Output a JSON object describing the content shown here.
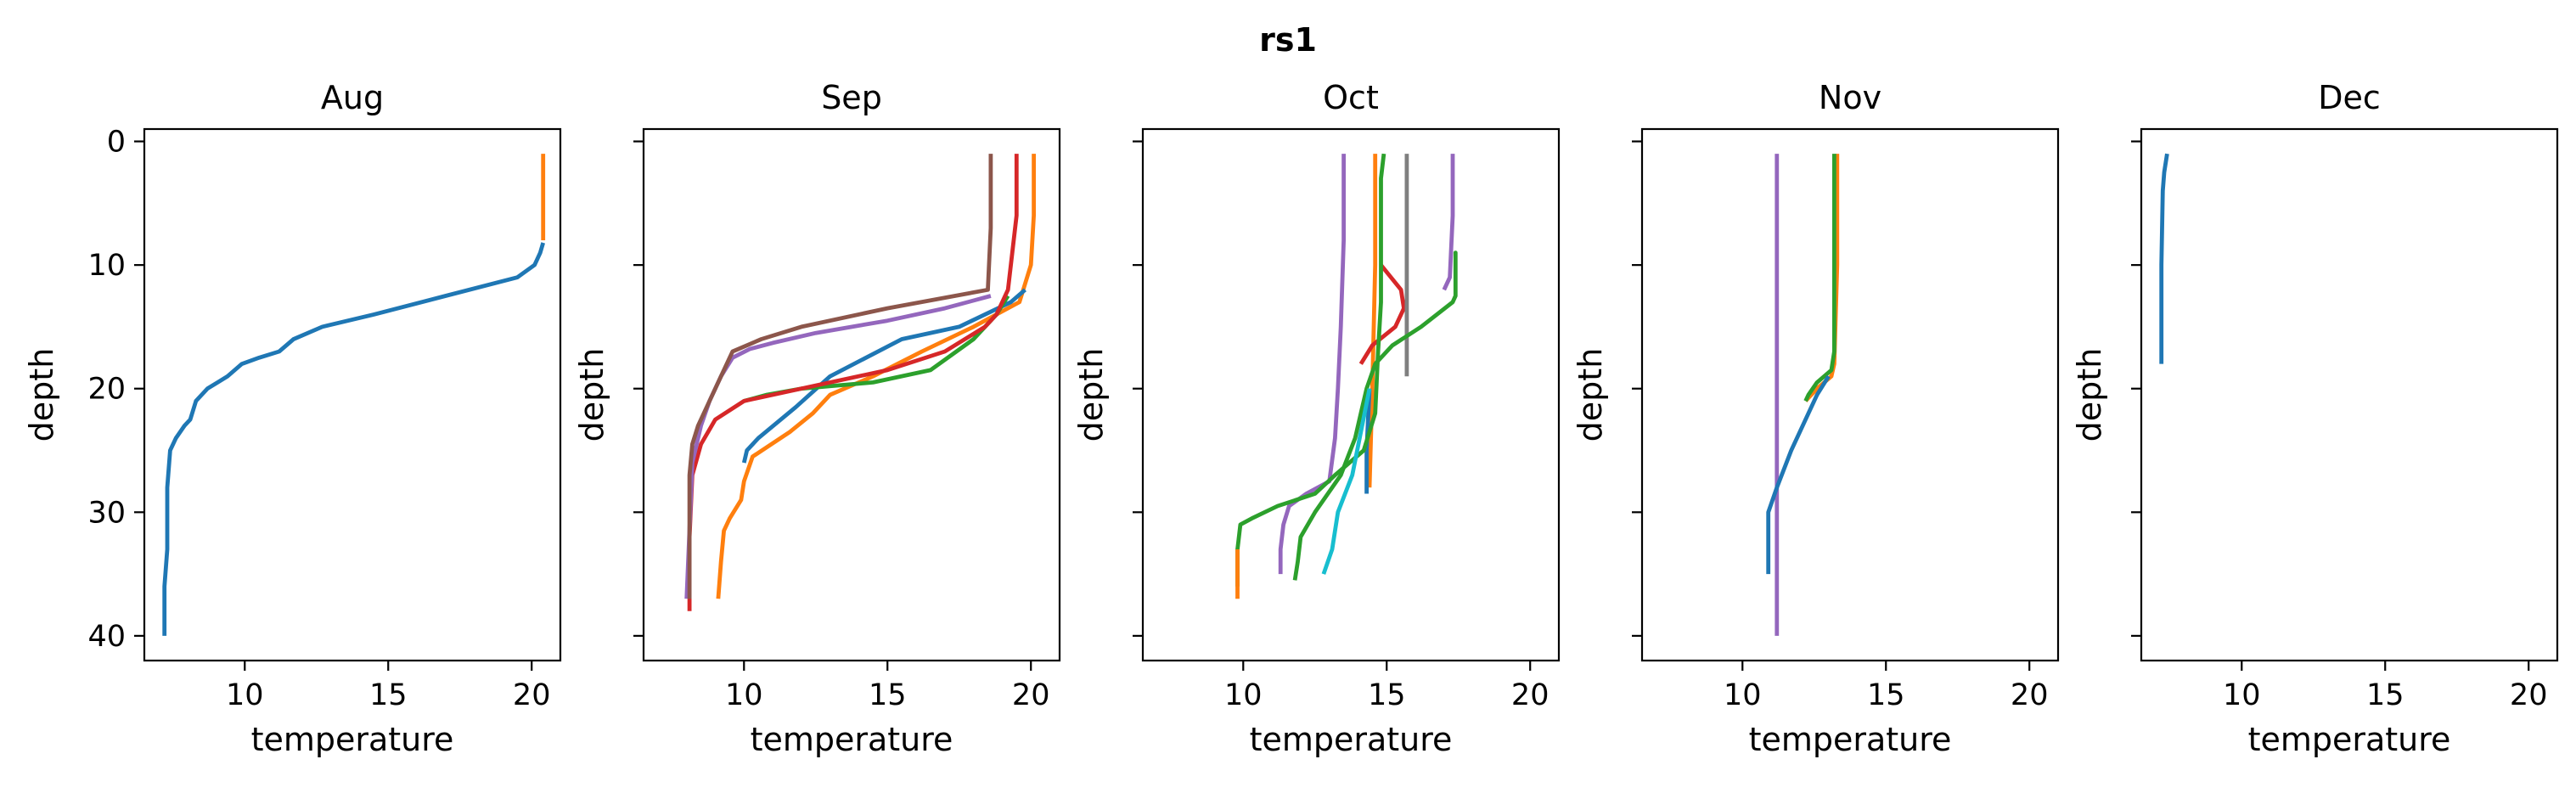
{
  "chart_data": {
    "type": "line",
    "title": "rs1",
    "xlabel": "temperature",
    "ylabel": "depth",
    "xlim": [
      6.5,
      21.0
    ],
    "ylim": [
      42,
      -1
    ],
    "y_inverted": true,
    "sharey": true,
    "xticks": [
      10,
      15,
      20
    ],
    "yticks": [
      0,
      10,
      20,
      30,
      40
    ],
    "grid": false,
    "palette": {
      "blue": "#1f77b4",
      "orange": "#ff7f0e",
      "green": "#2ca02c",
      "red": "#d62728",
      "purple": "#9467bd",
      "brown": "#8c564b",
      "gray": "#7f7f7f",
      "cyan": "#17becf"
    },
    "panels": [
      {
        "title": "Aug",
        "series": [
          {
            "color": "#ff7f0e",
            "temperature": [
              20.4,
              20.4,
              20.4
            ],
            "depth": [
              1,
              5,
              8
            ]
          },
          {
            "color": "#1f77b4",
            "temperature": [
              20.4,
              20.3,
              20.1,
              19.5,
              17,
              14.5,
              12.7,
              11.7,
              11.2,
              10.5,
              9.9,
              9.4,
              8.7,
              8.3,
              8.1,
              7.9,
              7.6,
              7.4,
              7.3,
              7.3,
              7.3,
              7.2,
              7.2
            ],
            "depth": [
              8.2,
              9,
              10,
              11,
              12.5,
              14,
              15,
              16,
              17,
              17.5,
              18,
              19,
              20,
              21,
              22.5,
              23,
              24,
              25,
              28,
              31,
              33,
              36,
              40
            ]
          }
        ]
      },
      {
        "title": "Sep",
        "series": [
          {
            "color": "#ff7f0e",
            "temperature": [
              20.1,
              20.1,
              20.0,
              19.6,
              18.0,
              16.2,
              14.5,
              13.0,
              12.4,
              11.6,
              10.3,
              10.0,
              9.9,
              9.5,
              9.3,
              9.2,
              9.1
            ],
            "depth": [
              1,
              6,
              10,
              13,
              15,
              17,
              19,
              20.5,
              22,
              23.5,
              25.5,
              27.5,
              29,
              30.5,
              31.5,
              34,
              37
            ]
          },
          {
            "color": "#1f77b4",
            "temperature": [
              19.8,
              19.3,
              17.5,
              15.5,
              13.0,
              11.8,
              10.5,
              10.1,
              10.0
            ],
            "depth": [
              12,
              13,
              15,
              16,
              19,
              21.5,
              24,
              25,
              26
            ]
          },
          {
            "color": "#2ca02c",
            "temperature": [
              19.2,
              18.8,
              18.0,
              16.5,
              14.5,
              12.0,
              10.8,
              10.0
            ],
            "depth": [
              12.5,
              14,
              16,
              18.5,
              19.5,
              20,
              20.5,
              21
            ]
          },
          {
            "color": "#d62728",
            "temperature": [
              19.5,
              19.5,
              19.2,
              18.8,
              18.4,
              17.0,
              15.0,
              12.0,
              10.0,
              9.0,
              8.5,
              8.2,
              8.1,
              8.1
            ],
            "depth": [
              1,
              6,
              12,
              14,
              15,
              17,
              18.5,
              20,
              21,
              22.5,
              24.5,
              27,
              32,
              38
            ]
          },
          {
            "color": "#9467bd",
            "temperature": [
              18.6,
              17.0,
              15.0,
              12.5,
              11.0,
              10.2,
              9.6,
              9.2,
              8.8,
              8.5,
              8.2,
              8.0
            ],
            "depth": [
              12.5,
              13.5,
              14.5,
              15.5,
              16.3,
              16.8,
              17.5,
              19,
              21,
              23,
              26,
              37
            ]
          },
          {
            "color": "#8c564b",
            "temperature": [
              18.6,
              18.6,
              18.5,
              15.0,
              12.0,
              10.6,
              9.6,
              9.2,
              8.8,
              8.4,
              8.2,
              8.1,
              8.1
            ],
            "depth": [
              1,
              7,
              12,
              13.5,
              15,
              16,
              17,
              19,
              21,
              23,
              24.5,
              27,
              37
            ]
          }
        ]
      },
      {
        "title": "Oct",
        "series": [
          {
            "color": "#9467bd",
            "temperature": [
              13.5,
              13.5,
              13.4,
              13.3,
              13.2,
              13.0,
              12.2,
              11.6,
              11.4,
              11.3,
              11.3
            ],
            "depth": [
              1,
              8,
              15,
              20,
              24,
              27.5,
              28.5,
              29.5,
              31,
              33,
              35
            ]
          },
          {
            "color": "#ff7f0e",
            "temperature": [
              14.6,
              14.6,
              14.5,
              14.4
            ],
            "depth": [
              1,
              10,
              20,
              28
            ]
          },
          {
            "color": "#1f77b4",
            "temperature": [
              14.4,
              14.3,
              14.3,
              14.3
            ],
            "depth": [
              20,
              25,
              28,
              28.5
            ]
          },
          {
            "color": "#d62728",
            "temperature": [
              14.8,
              15.5,
              15.6,
              15.3,
              14.5,
              14.1
            ],
            "depth": [
              10,
              12,
              13.5,
              15,
              16.5,
              18
            ]
          },
          {
            "color": "#2ca02c",
            "temperature": [
              14.9,
              14.8,
              14.8,
              14.7,
              14.6,
              14.2,
              13.2,
              12.5,
              11.2,
              10.3,
              9.9,
              9.8,
              9.8
            ],
            "depth": [
              1,
              3,
              13,
              17,
              22,
              25,
              27,
              28.5,
              29.5,
              30.5,
              31,
              33,
              36
            ]
          },
          {
            "color": "#7f7f7f",
            "temperature": [
              15.7,
              15.7,
              15.7,
              15.7
            ],
            "depth": [
              1,
              10,
              16,
              19
            ]
          },
          {
            "color": "#9467bd",
            "temperature": [
              17.3,
              17.3,
              17.2,
              17.0
            ],
            "depth": [
              1,
              6,
              11,
              12
            ]
          },
          {
            "color": "#2ca02c",
            "temperature": [
              17.4,
              17.4,
              17.4,
              17.3,
              16.2,
              15.2,
              14.6,
              14.3,
              14.1,
              13.9,
              13.4,
              12.5,
              12.0,
              11.9,
              11.8
            ],
            "depth": [
              12,
              9,
              12.5,
              13,
              15,
              16.5,
              18,
              20,
              22,
              24,
              27,
              30,
              32,
              34,
              35.5
            ]
          },
          {
            "color": "#17becf",
            "temperature": [
              14.4,
              13.8,
              13.3,
              13.1,
              12.8
            ],
            "depth": [
              20,
              27,
              30,
              33,
              35
            ]
          },
          {
            "color": "#ff7f0e",
            "temperature": [
              9.8,
              9.8,
              9.8
            ],
            "depth": [
              33,
              35,
              37
            ]
          }
        ]
      },
      {
        "title": "Nov",
        "series": [
          {
            "color": "#9467bd",
            "temperature": [
              11.2,
              11.2,
              11.2
            ],
            "depth": [
              1,
              20,
              40
            ]
          },
          {
            "color": "#ff7f0e",
            "temperature": [
              13.3,
              13.3,
              13.2,
              13.1,
              12.6,
              12.2
            ],
            "depth": [
              1,
              10,
              18,
              19,
              20,
              21
            ]
          },
          {
            "color": "#2ca02c",
            "temperature": [
              13.2,
              13.2,
              13.2,
              13.1,
              12.6,
              12.3,
              12.2
            ],
            "depth": [
              1,
              10,
              17,
              18.5,
              19.5,
              20.5,
              21
            ]
          },
          {
            "color": "#1f77b4",
            "temperature": [
              13.0,
              12.6,
              12.3,
              11.7,
              11.2,
              10.9,
              10.9
            ],
            "depth": [
              19,
              20.5,
              22,
              25,
              28,
              30,
              35
            ]
          }
        ]
      },
      {
        "title": "Dec",
        "series": [
          {
            "color": "#1f77b4",
            "temperature": [
              7.4,
              7.3,
              7.25,
              7.2,
              7.2
            ],
            "depth": [
              1,
              2.5,
              4,
              10,
              18
            ]
          }
        ]
      }
    ]
  }
}
